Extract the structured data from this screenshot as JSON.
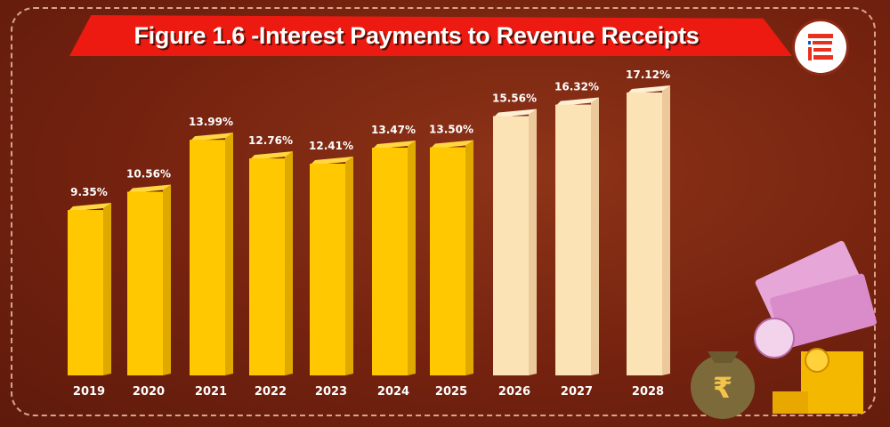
{
  "title": "Figure 1.6 -Interest Payments to Revenue Receipts",
  "logo_icon": "brand-e-logo-icon",
  "colors": {
    "background": "#74220f",
    "banner": "#ec1a10",
    "actual_bar": "#ffc800",
    "projected_bar": "#fbe3b6"
  },
  "chart_data": {
    "type": "bar",
    "title": "Figure 1.6 -Interest Payments to Revenue Receipts",
    "categories": [
      "2019",
      "2020",
      "2021",
      "2022",
      "2023",
      "2024",
      "2025",
      "2026",
      "2027",
      "2028"
    ],
    "values": [
      9.35,
      10.56,
      13.99,
      12.76,
      12.41,
      13.47,
      13.5,
      15.56,
      16.32,
      17.12
    ],
    "labels": [
      "9.35%",
      "10.56%",
      "13.99%",
      "12.76%",
      "12.41%",
      "13.47%",
      "13.50%",
      "15.56%",
      "16.32%",
      "17.12%"
    ],
    "projected": [
      false,
      false,
      false,
      false,
      false,
      false,
      false,
      true,
      true,
      true
    ],
    "unit": "%",
    "grid": false,
    "legend": "none",
    "style": "3d-bar"
  },
  "decorations": [
    "money-bag-rupee-icon",
    "rupee-banknotes-icon",
    "gold-coins-icon"
  ]
}
